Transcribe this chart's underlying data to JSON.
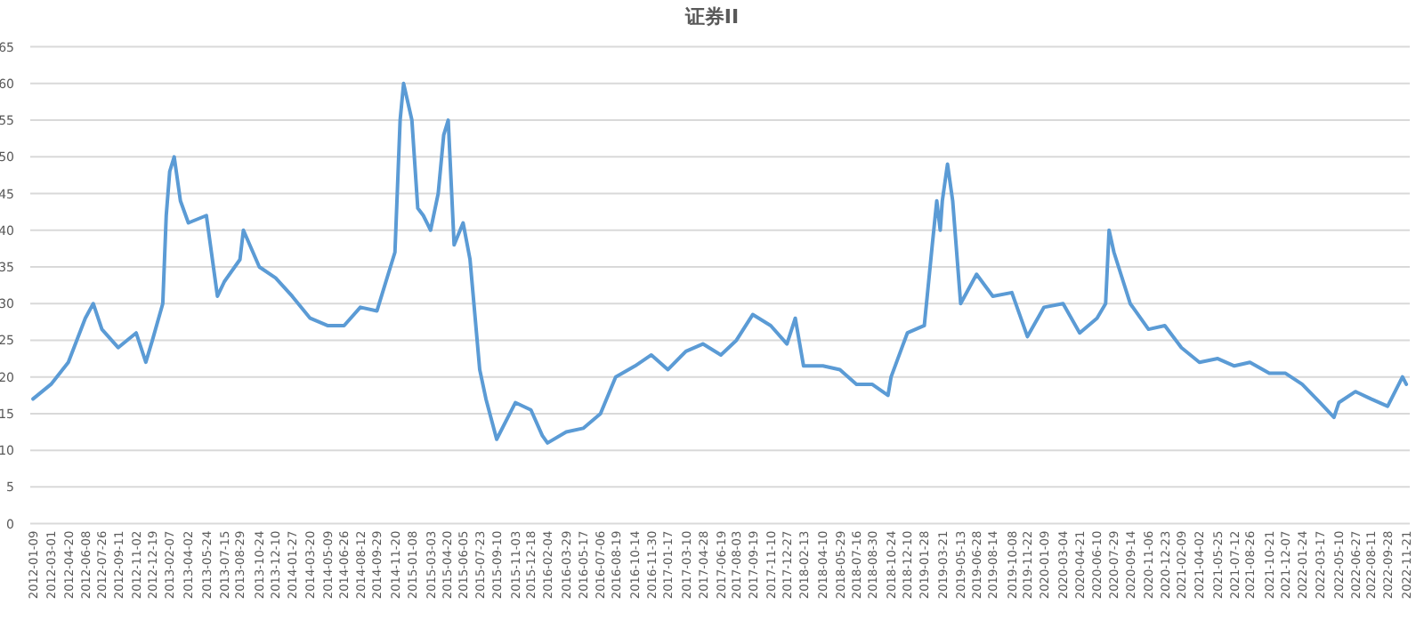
{
  "chart_data": {
    "type": "line",
    "title": "证券II",
    "color": "#5b9bd5",
    "grid": "y",
    "marker": "none",
    "line_style": "solid",
    "xlim": [
      "2012-01-01",
      "2022-12-01"
    ],
    "xticks": [
      "2012-01-09",
      "2012-03-01",
      "2012-04-20",
      "2012-06-08",
      "2012-07-26",
      "2012-09-11",
      "2012-11-02",
      "2012-12-19",
      "2013-02-07",
      "2013-04-02",
      "2013-05-24",
      "2013-07-15",
      "2013-08-29",
      "2013-10-24",
      "2013-12-10",
      "2014-01-27",
      "2014-03-20",
      "2014-05-09",
      "2014-06-26",
      "2014-08-12",
      "2014-09-29",
      "2014-11-20",
      "2015-01-08",
      "2015-03-03",
      "2015-04-20",
      "2015-06-05",
      "2015-07-23",
      "2015-09-10",
      "2015-11-03",
      "2015-12-18",
      "2016-02-04",
      "2016-03-29",
      "2016-05-17",
      "2016-07-06",
      "2016-08-19",
      "2016-10-14",
      "2016-11-30",
      "2017-01-17",
      "2017-03-10",
      "2017-04-28",
      "2017-06-19",
      "2017-08-03",
      "2017-09-19",
      "2017-11-10",
      "2017-12-27",
      "2018-02-13",
      "2018-04-10",
      "2018-05-29",
      "2018-07-16",
      "2018-08-30",
      "2018-10-24",
      "2018-12-10",
      "2019-01-28",
      "2019-03-21",
      "2019-05-13",
      "2019-06-28",
      "2019-08-14",
      "2019-10-08",
      "2019-11-22",
      "2020-01-09",
      "2020-03-04",
      "2020-04-21",
      "2020-06-10",
      "2020-07-29",
      "2020-09-14",
      "2020-11-06",
      "2020-12-23",
      "2021-02-09",
      "2021-04-02",
      "2021-05-25",
      "2021-07-12",
      "2021-08-26",
      "2021-10-21",
      "2021-12-07",
      "2022-01-24",
      "2022-03-17",
      "2022-05-10",
      "2022-06-27",
      "2022-08-11",
      "2022-09-28",
      "2022-11-21"
    ],
    "ylim": [
      0,
      65
    ],
    "yticks": [
      0,
      5,
      10,
      15,
      20,
      25,
      30,
      35,
      40,
      45,
      50,
      55,
      60,
      65
    ],
    "x": [
      "2012-01-09",
      "2012-03-01",
      "2012-04-20",
      "2012-06-08",
      "2012-07-01",
      "2012-07-26",
      "2012-09-11",
      "2012-11-02",
      "2012-11-30",
      "2012-12-19",
      "2013-01-18",
      "2013-01-28",
      "2013-02-07",
      "2013-02-20",
      "2013-03-10",
      "2013-04-02",
      "2013-05-24",
      "2013-06-25",
      "2013-07-15",
      "2013-08-29",
      "2013-09-08",
      "2013-10-24",
      "2013-12-10",
      "2014-01-27",
      "2014-03-20",
      "2014-05-09",
      "2014-06-26",
      "2014-08-12",
      "2014-09-29",
      "2014-11-20",
      "2014-12-05",
      "2014-12-15",
      "2015-01-08",
      "2015-01-25",
      "2015-02-10",
      "2015-03-03",
      "2015-03-25",
      "2015-04-10",
      "2015-04-23",
      "2015-05-10",
      "2015-06-05",
      "2015-06-25",
      "2015-07-23",
      "2015-08-10",
      "2015-09-10",
      "2015-11-03",
      "2015-12-18",
      "2016-01-20",
      "2016-02-04",
      "2016-03-29",
      "2016-05-17",
      "2016-07-06",
      "2016-08-19",
      "2016-10-14",
      "2016-11-30",
      "2017-01-17",
      "2017-03-10",
      "2017-04-28",
      "2017-06-19",
      "2017-08-03",
      "2017-09-19",
      "2017-11-10",
      "2017-12-27",
      "2018-01-20",
      "2018-02-13",
      "2018-04-10",
      "2018-05-29",
      "2018-07-16",
      "2018-08-30",
      "2018-10-15",
      "2018-10-24",
      "2018-12-10",
      "2019-01-28",
      "2019-02-20",
      "2019-03-05",
      "2019-03-15",
      "2019-03-21",
      "2019-04-05",
      "2019-04-20",
      "2019-05-13",
      "2019-06-28",
      "2019-08-14",
      "2019-10-08",
      "2019-11-22",
      "2020-01-09",
      "2020-03-04",
      "2020-04-21",
      "2020-06-10",
      "2020-07-05",
      "2020-07-15",
      "2020-07-29",
      "2020-09-14",
      "2020-11-06",
      "2020-12-23",
      "2021-02-09",
      "2021-04-02",
      "2021-05-25",
      "2021-07-12",
      "2021-08-26",
      "2021-10-21",
      "2021-12-07",
      "2022-01-24",
      "2022-03-17",
      "2022-04-26",
      "2022-05-10",
      "2022-06-27",
      "2022-08-11",
      "2022-09-28",
      "2022-11-10",
      "2022-11-21"
    ],
    "values": [
      17,
      19,
      22,
      28,
      30,
      26.5,
      24,
      26,
      22,
      25,
      30,
      42,
      48,
      50,
      44,
      41,
      42,
      31,
      33,
      36,
      40,
      35,
      33.5,
      31,
      28,
      27,
      27,
      29.5,
      29,
      37,
      55,
      60,
      55,
      43,
      42,
      40,
      45,
      53,
      55,
      38,
      41,
      36,
      21,
      17,
      11.5,
      16.5,
      15.5,
      12,
      11,
      12.5,
      13,
      15,
      20,
      21.5,
      23,
      21,
      23.5,
      24.5,
      23,
      25,
      28.5,
      27,
      24.5,
      28,
      21.5,
      21.5,
      21,
      19,
      19,
      17.5,
      20,
      26,
      27,
      38,
      44,
      40,
      44,
      49,
      44,
      30,
      34,
      31,
      31.5,
      25.5,
      29.5,
      30,
      26,
      28,
      30,
      40,
      37,
      30,
      26.5,
      27,
      24,
      22,
      22.5,
      21.5,
      22,
      20.5,
      20.5,
      19,
      16.5,
      14.5,
      16.5,
      18,
      17,
      16,
      20,
      19
    ]
  }
}
